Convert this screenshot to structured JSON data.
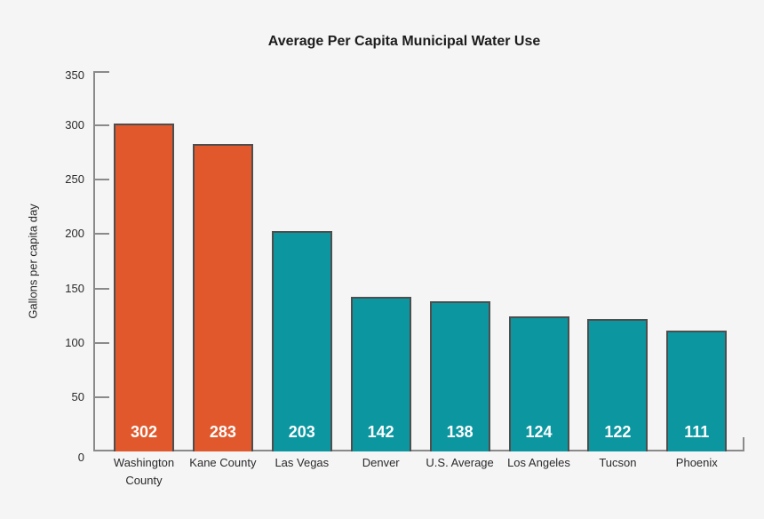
{
  "chart_data": {
    "type": "bar",
    "title": "Average Per Capita Municipal Water Use",
    "ylabel": "Gallons per capita day",
    "xlabel": "",
    "categories": [
      "Washington County",
      "Kane County",
      "Las Vegas",
      "Denver",
      "U.S. Average",
      "Los Angeles",
      "Tucson",
      "Phoenix"
    ],
    "values": [
      302,
      283,
      203,
      142,
      138,
      124,
      122,
      111
    ],
    "value_labels": [
      "302",
      "283",
      "203",
      "142",
      "138",
      "124",
      "122",
      "111"
    ],
    "bar_colors": [
      "#e0582b",
      "#e0582b",
      "#0b96a0",
      "#0b96a0",
      "#0b96a0",
      "#0b96a0",
      "#0b96a0",
      "#0b96a0"
    ],
    "ylim": [
      0,
      350
    ],
    "yticks": [
      0,
      50,
      100,
      150,
      200,
      250,
      300,
      350
    ],
    "grid": false,
    "legend": "none"
  },
  "colors": {
    "background": "#f5f5f6",
    "axis": "#8a8a8a",
    "bar_border": "#4e4e4e",
    "orange": "#e0582b",
    "teal": "#0b96a0",
    "value_label_text": "#ffffff",
    "text": "#2a2a2a"
  }
}
